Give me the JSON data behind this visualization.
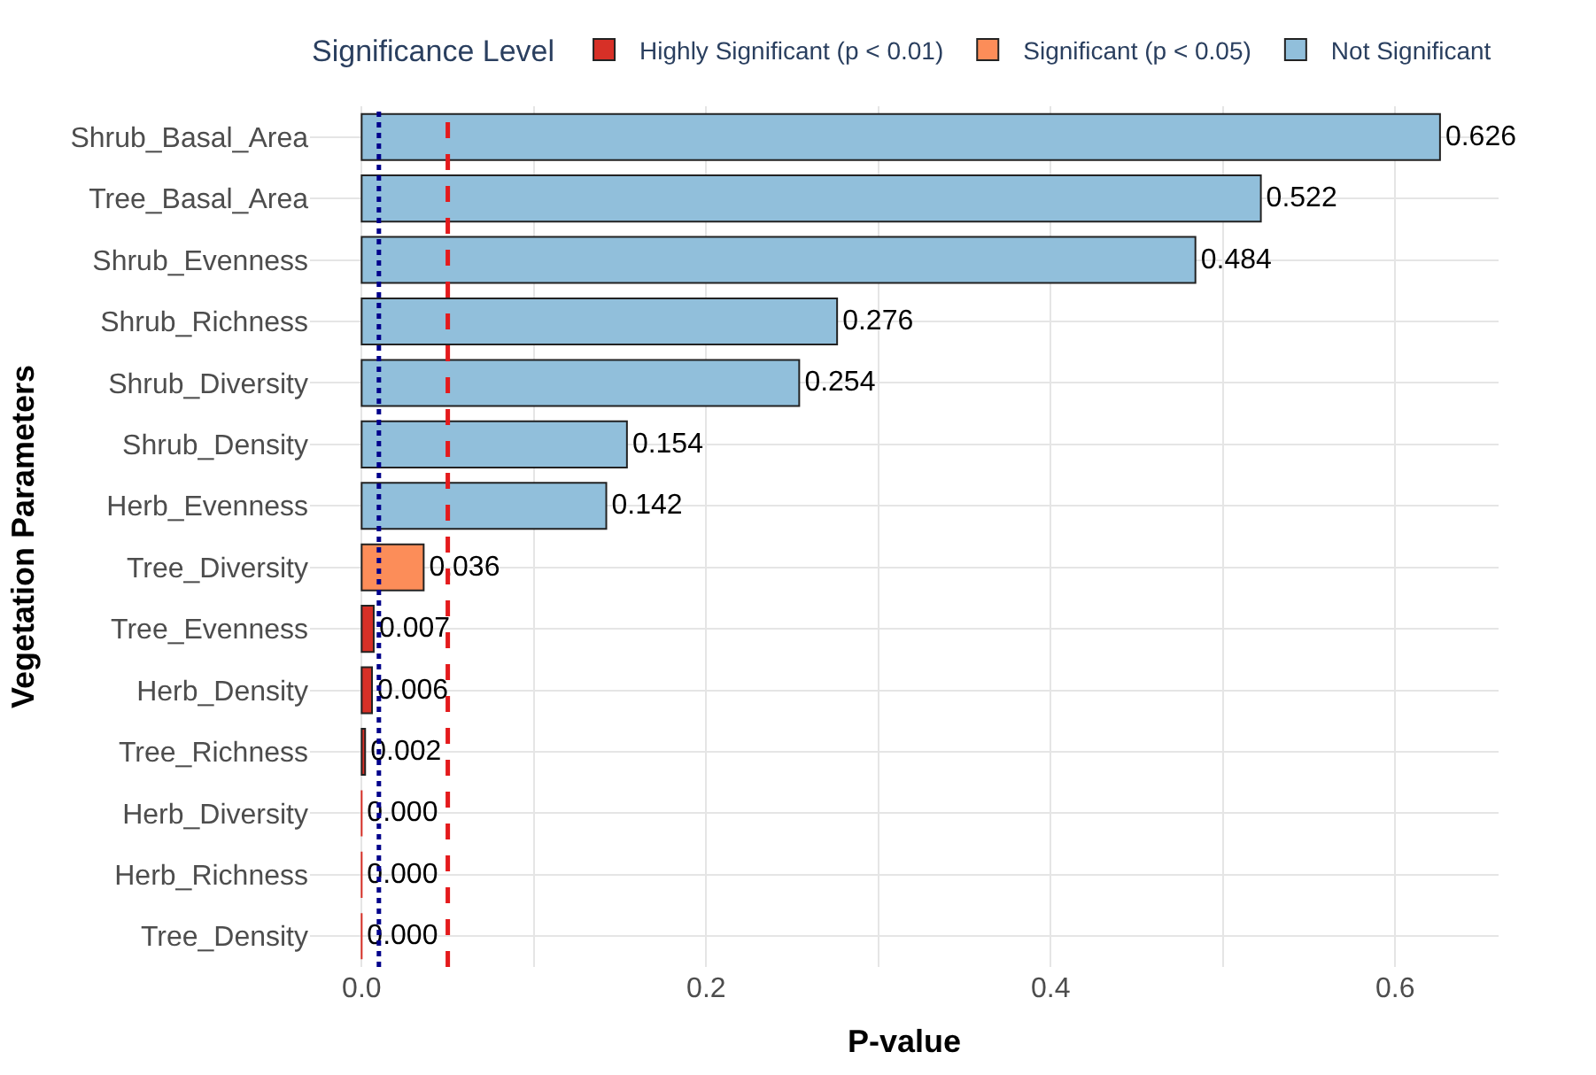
{
  "chart_data": {
    "type": "bar",
    "orientation": "horizontal",
    "xlabel": "P-value",
    "ylabel": "Vegetation Parameters",
    "legend_title": "Significance Level",
    "legend": "top",
    "categories": [
      "Shrub_Basal_Area",
      "Tree_Basal_Area",
      "Shrub_Evenness",
      "Shrub_Richness",
      "Shrub_Diversity",
      "Shrub_Density",
      "Herb_Evenness",
      "Tree_Diversity",
      "Tree_Evenness",
      "Herb_Density",
      "Tree_Richness",
      "Herb_Diversity",
      "Herb_Richness",
      "Tree_Density"
    ],
    "series": [
      {
        "name": "Highly Significant (p < 0.01)",
        "color": "#d73027",
        "values": [
          null,
          null,
          null,
          null,
          null,
          null,
          null,
          null,
          0.007,
          0.006,
          0.002,
          0.0,
          0.0,
          0.0
        ],
        "value_labels": [
          null,
          null,
          null,
          null,
          null,
          null,
          null,
          null,
          "0.007",
          "0.006",
          "0.002",
          "0.000",
          "0.000",
          "0.000"
        ]
      },
      {
        "name": "Significant (p < 0.05)",
        "color": "#fc8d59",
        "values": [
          null,
          null,
          null,
          null,
          null,
          null,
          null,
          0.036,
          null,
          null,
          null,
          null,
          null,
          null
        ],
        "value_labels": [
          null,
          null,
          null,
          null,
          null,
          null,
          null,
          "0.036",
          null,
          null,
          null,
          null,
          null,
          null
        ]
      },
      {
        "name": "Not Significant",
        "color": "#91bfdb",
        "values": [
          0.626,
          0.522,
          0.484,
          0.276,
          0.254,
          0.154,
          0.142,
          null,
          null,
          null,
          null,
          null,
          null,
          null
        ],
        "value_labels": [
          "0.626",
          "0.522",
          "0.484",
          "0.276",
          "0.254",
          "0.154",
          "0.142",
          null,
          null,
          null,
          null,
          null,
          null,
          null
        ]
      }
    ],
    "xlim": [
      -0.03,
      0.66
    ],
    "xticks": [
      {
        "value": 0,
        "label": "0.0"
      },
      {
        "value": 0.1,
        "label": null
      },
      {
        "value": 0.2,
        "label": "0.2"
      },
      {
        "value": 0.3,
        "label": null
      },
      {
        "value": 0.4,
        "label": "0.4"
      },
      {
        "value": 0.5,
        "label": null
      },
      {
        "value": 0.6,
        "label": "0.6"
      }
    ],
    "ref_lines": [
      {
        "axis": "x",
        "value": 0.05,
        "color": "#e41a1c",
        "line_style": "dashed"
      },
      {
        "axis": "x",
        "value": 0.01,
        "color": "#00008b",
        "line_style": "dotted"
      }
    ],
    "grid": true
  }
}
